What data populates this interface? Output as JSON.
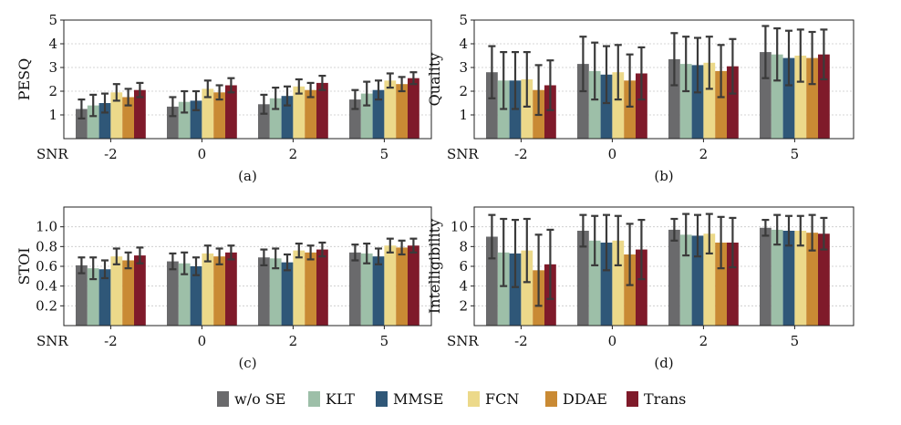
{
  "legend": [
    {
      "name": "w/o SE",
      "color": "#6a6a6c"
    },
    {
      "name": "KLT",
      "color": "#9dbfa8"
    },
    {
      "name": "MMSE",
      "color": "#2f5778"
    },
    {
      "name": "FCN",
      "color": "#ecd98a"
    },
    {
      "name": "DDAE",
      "color": "#c98a34"
    },
    {
      "name": "Trans",
      "color": "#7f1a2a"
    }
  ],
  "chart_data": [
    {
      "type": "bar",
      "ylabel": "PESQ",
      "xlabel": "SNR",
      "caption": "(a)",
      "categories": [
        "-2",
        "0",
        "2",
        "5"
      ],
      "ylim": [
        0,
        5
      ],
      "yticks": [
        1,
        2,
        3,
        4,
        5
      ],
      "ytick_labels": [
        "1",
        "2",
        "3",
        "4",
        "5"
      ],
      "grid": true,
      "series": [
        {
          "name": "w/o SE",
          "values": [
            1.25,
            1.35,
            1.45,
            1.65
          ],
          "errors": [
            0.4,
            0.4,
            0.4,
            0.4
          ]
        },
        {
          "name": "KLT",
          "values": [
            1.4,
            1.55,
            1.7,
            1.9
          ],
          "errors": [
            0.45,
            0.45,
            0.45,
            0.5
          ]
        },
        {
          "name": "MMSE",
          "values": [
            1.5,
            1.6,
            1.8,
            2.05
          ],
          "errors": [
            0.4,
            0.4,
            0.4,
            0.4
          ]
        },
        {
          "name": "FCN",
          "values": [
            1.95,
            2.1,
            2.2,
            2.45
          ],
          "errors": [
            0.35,
            0.35,
            0.3,
            0.3
          ]
        },
        {
          "name": "DDAE",
          "values": [
            1.75,
            1.95,
            2.05,
            2.3
          ],
          "errors": [
            0.35,
            0.3,
            0.3,
            0.3
          ]
        },
        {
          "name": "Trans",
          "values": [
            2.05,
            2.25,
            2.35,
            2.55
          ],
          "errors": [
            0.3,
            0.3,
            0.3,
            0.25
          ]
        }
      ]
    },
    {
      "type": "bar",
      "ylabel": "Quality",
      "xlabel": "SNR",
      "caption": "(b)",
      "categories": [
        "-2",
        "0",
        "2",
        "5"
      ],
      "ylim": [
        0,
        5
      ],
      "yticks": [
        1,
        2,
        3,
        4,
        5
      ],
      "ytick_labels": [
        "1",
        "2",
        "3",
        "4",
        "5"
      ],
      "grid": true,
      "series": [
        {
          "name": "w/o SE",
          "values": [
            2.8,
            3.15,
            3.35,
            3.65
          ],
          "errors": [
            1.1,
            1.15,
            1.1,
            1.1
          ]
        },
        {
          "name": "KLT",
          "values": [
            2.45,
            2.85,
            3.15,
            3.55
          ],
          "errors": [
            1.2,
            1.2,
            1.15,
            1.1
          ]
        },
        {
          "name": "MMSE",
          "values": [
            2.45,
            2.7,
            3.1,
            3.4
          ],
          "errors": [
            1.2,
            1.2,
            1.15,
            1.15
          ]
        },
        {
          "name": "FCN",
          "values": [
            2.5,
            2.8,
            3.2,
            3.5
          ],
          "errors": [
            1.15,
            1.15,
            1.1,
            1.1
          ]
        },
        {
          "name": "DDAE",
          "values": [
            2.05,
            2.45,
            2.85,
            3.4
          ],
          "errors": [
            1.05,
            1.1,
            1.1,
            1.1
          ]
        },
        {
          "name": "Trans",
          "values": [
            2.25,
            2.75,
            3.05,
            3.55
          ],
          "errors": [
            1.05,
            1.1,
            1.15,
            1.05
          ]
        }
      ]
    },
    {
      "type": "bar",
      "ylabel": "STOI",
      "xlabel": "SNR",
      "caption": "(c)",
      "categories": [
        "-2",
        "0",
        "2",
        "5"
      ],
      "ylim": [
        0,
        1.2
      ],
      "yticks": [
        0.2,
        0.4,
        0.6,
        0.8,
        1.0
      ],
      "ytick_labels": [
        "0.2",
        "0.4",
        "0.6",
        "0.8",
        "1.0"
      ],
      "grid": true,
      "series": [
        {
          "name": "w/o SE",
          "values": [
            0.61,
            0.65,
            0.69,
            0.74
          ],
          "errors": [
            0.08,
            0.08,
            0.08,
            0.08
          ]
        },
        {
          "name": "KLT",
          "values": [
            0.58,
            0.63,
            0.68,
            0.73
          ],
          "errors": [
            0.11,
            0.11,
            0.1,
            0.1
          ]
        },
        {
          "name": "MMSE",
          "values": [
            0.57,
            0.6,
            0.64,
            0.7
          ],
          "errors": [
            0.09,
            0.09,
            0.08,
            0.08
          ]
        },
        {
          "name": "FCN",
          "values": [
            0.7,
            0.73,
            0.76,
            0.81
          ],
          "errors": [
            0.08,
            0.08,
            0.07,
            0.07
          ]
        },
        {
          "name": "DDAE",
          "values": [
            0.66,
            0.7,
            0.74,
            0.79
          ],
          "errors": [
            0.08,
            0.08,
            0.07,
            0.07
          ]
        },
        {
          "name": "Trans",
          "values": [
            0.71,
            0.74,
            0.77,
            0.81
          ],
          "errors": [
            0.08,
            0.07,
            0.07,
            0.07
          ]
        }
      ]
    },
    {
      "type": "bar",
      "ylabel": "Intelligibility",
      "xlabel": "SNR",
      "caption": "(d)",
      "categories": [
        "-2",
        "0",
        "2",
        "5"
      ],
      "ylim": [
        0,
        12
      ],
      "yticks": [
        2,
        4,
        6,
        8,
        10
      ],
      "ytick_labels": [
        "2",
        "4",
        "6",
        "8",
        "10"
      ],
      "grid": true,
      "series": [
        {
          "name": "w/o SE",
          "values": [
            9.0,
            9.6,
            9.7,
            9.9
          ],
          "errors": [
            2.2,
            1.6,
            1.1,
            0.8
          ]
        },
        {
          "name": "KLT",
          "values": [
            7.4,
            8.6,
            9.2,
            9.7
          ],
          "errors": [
            3.4,
            2.5,
            2.1,
            1.5
          ]
        },
        {
          "name": "MMSE",
          "values": [
            7.3,
            8.4,
            9.1,
            9.6
          ],
          "errors": [
            3.4,
            2.8,
            2.1,
            1.5
          ]
        },
        {
          "name": "FCN",
          "values": [
            7.6,
            8.6,
            9.3,
            9.6
          ],
          "errors": [
            3.2,
            2.5,
            2.0,
            1.5
          ]
        },
        {
          "name": "DDAE",
          "values": [
            5.6,
            7.2,
            8.4,
            9.4
          ],
          "errors": [
            3.6,
            3.1,
            2.6,
            1.8
          ]
        },
        {
          "name": "Trans",
          "values": [
            6.2,
            7.7,
            8.4,
            9.3
          ],
          "errors": [
            3.5,
            3.0,
            2.5,
            1.6
          ]
        }
      ]
    }
  ]
}
